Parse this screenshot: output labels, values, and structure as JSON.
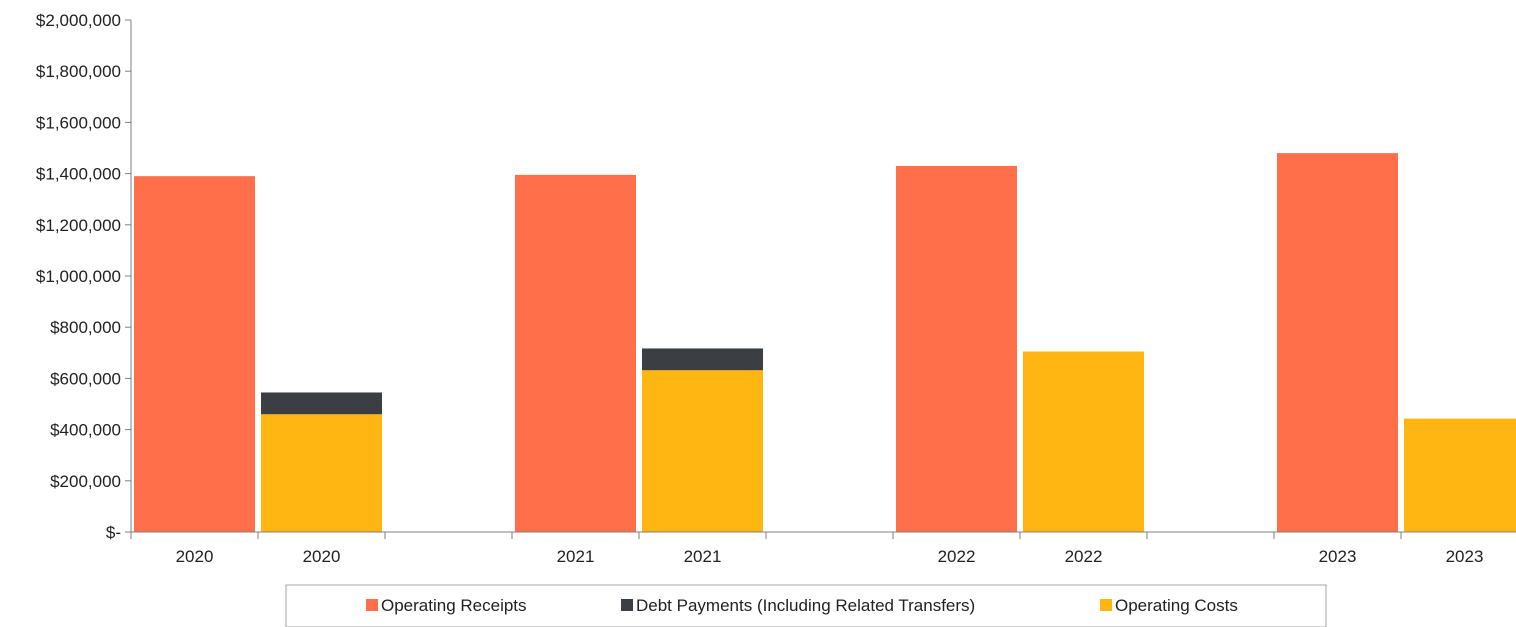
{
  "chart_data": {
    "type": "bar",
    "stacked": true,
    "categories": [
      "2020",
      "2020",
      "2021",
      "2021",
      "2022",
      "2022",
      "2023",
      "2023"
    ],
    "series": [
      {
        "name": "Operating Receipts",
        "color": "#FF6F4A",
        "values": [
          1390000,
          0,
          1395000,
          0,
          1430000,
          0,
          1480000,
          0
        ]
      },
      {
        "name": "Operating Costs",
        "color": "#FFB612",
        "values": [
          0,
          460000,
          0,
          632000,
          0,
          705000,
          0,
          443000
        ]
      },
      {
        "name": "Debt Payments (Including Related Transfers)",
        "color": "#3B3E42",
        "values": [
          0,
          85000,
          0,
          85000,
          0,
          0,
          0,
          0
        ]
      }
    ],
    "legend_order": [
      "Operating Receipts",
      "Debt Payments (Including Related Transfers)",
      "Operating Costs"
    ],
    "ylim": [
      0,
      2000000
    ],
    "y_ticks": [
      0,
      200000,
      400000,
      600000,
      800000,
      1000000,
      1200000,
      1400000,
      1600000,
      1800000,
      2000000
    ],
    "y_tick_labels": [
      "$-",
      "$200,000",
      "$400,000",
      "$600,000",
      "$800,000",
      "$1,000,000",
      "$1,200,000",
      "$1,400,000",
      "$1,600,000",
      "$1,800,000",
      "$2,000,000"
    ],
    "title": "",
    "xlabel": "",
    "ylabel": "",
    "grid": false,
    "legend_position": "bottom"
  }
}
